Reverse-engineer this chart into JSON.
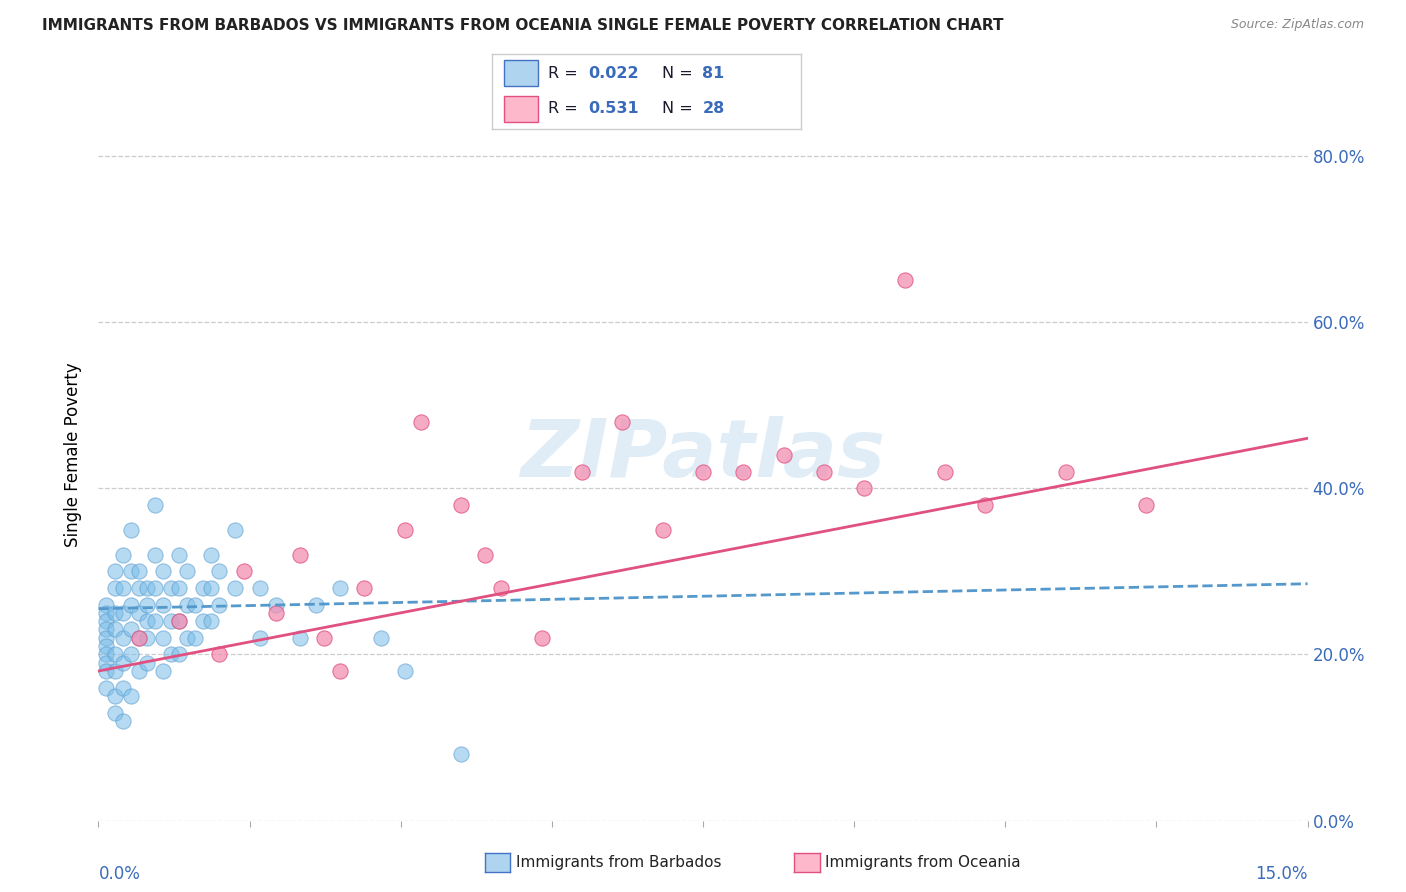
{
  "title": "IMMIGRANTS FROM BARBADOS VS IMMIGRANTS FROM OCEANIA SINGLE FEMALE POVERTY CORRELATION CHART",
  "source": "Source: ZipAtlas.com",
  "ylabel": "Single Female Poverty",
  "xlim": [
    0.0,
    0.15
  ],
  "ylim": [
    0.0,
    0.88
  ],
  "yticks": [
    0.0,
    0.2,
    0.4,
    0.6,
    0.8
  ],
  "yticklabels": [
    "0.0%",
    "20.0%",
    "40.0%",
    "60.0%",
    "80.0%"
  ],
  "series1_color": "#7bbde8",
  "series2_color": "#f48fb1",
  "trendline1_color": "#5599cc",
  "trendline2_color": "#e05080",
  "barbados_x": [
    0.001,
    0.001,
    0.001,
    0.001,
    0.001,
    0.001,
    0.001,
    0.001,
    0.001,
    0.001,
    0.002,
    0.002,
    0.002,
    0.002,
    0.002,
    0.002,
    0.002,
    0.002,
    0.003,
    0.003,
    0.003,
    0.003,
    0.003,
    0.003,
    0.003,
    0.004,
    0.004,
    0.004,
    0.004,
    0.004,
    0.004,
    0.005,
    0.005,
    0.005,
    0.005,
    0.005,
    0.006,
    0.006,
    0.006,
    0.006,
    0.006,
    0.007,
    0.007,
    0.007,
    0.007,
    0.008,
    0.008,
    0.008,
    0.008,
    0.009,
    0.009,
    0.009,
    0.01,
    0.01,
    0.01,
    0.01,
    0.011,
    0.011,
    0.011,
    0.012,
    0.012,
    0.013,
    0.013,
    0.014,
    0.014,
    0.014,
    0.015,
    0.015,
    0.017,
    0.017,
    0.02,
    0.02,
    0.022,
    0.025,
    0.027,
    0.03,
    0.035,
    0.038,
    0.045
  ],
  "barbados_y": [
    0.26,
    0.25,
    0.24,
    0.23,
    0.22,
    0.21,
    0.2,
    0.19,
    0.18,
    0.16,
    0.3,
    0.28,
    0.25,
    0.23,
    0.2,
    0.18,
    0.15,
    0.13,
    0.32,
    0.28,
    0.25,
    0.22,
    0.19,
    0.16,
    0.12,
    0.35,
    0.3,
    0.26,
    0.23,
    0.2,
    0.15,
    0.3,
    0.28,
    0.25,
    0.22,
    0.18,
    0.28,
    0.26,
    0.24,
    0.22,
    0.19,
    0.38,
    0.32,
    0.28,
    0.24,
    0.3,
    0.26,
    0.22,
    0.18,
    0.28,
    0.24,
    0.2,
    0.32,
    0.28,
    0.24,
    0.2,
    0.3,
    0.26,
    0.22,
    0.26,
    0.22,
    0.28,
    0.24,
    0.32,
    0.28,
    0.24,
    0.3,
    0.26,
    0.35,
    0.28,
    0.28,
    0.22,
    0.26,
    0.22,
    0.26,
    0.28,
    0.22,
    0.18,
    0.08
  ],
  "oceania_x": [
    0.005,
    0.01,
    0.015,
    0.018,
    0.022,
    0.025,
    0.028,
    0.03,
    0.033,
    0.038,
    0.04,
    0.045,
    0.048,
    0.05,
    0.055,
    0.06,
    0.065,
    0.07,
    0.075,
    0.08,
    0.085,
    0.09,
    0.095,
    0.1,
    0.105,
    0.11,
    0.12,
    0.13
  ],
  "oceania_y": [
    0.22,
    0.24,
    0.2,
    0.3,
    0.25,
    0.32,
    0.22,
    0.18,
    0.28,
    0.35,
    0.48,
    0.38,
    0.32,
    0.28,
    0.22,
    0.42,
    0.48,
    0.35,
    0.42,
    0.42,
    0.44,
    0.42,
    0.4,
    0.65,
    0.42,
    0.38,
    0.42,
    0.38
  ],
  "barbados_trendline_x": [
    0.0,
    0.15
  ],
  "barbados_trendline_y": [
    0.255,
    0.285
  ],
  "oceania_trendline_x": [
    0.0,
    0.15
  ],
  "oceania_trendline_y": [
    0.18,
    0.46
  ]
}
